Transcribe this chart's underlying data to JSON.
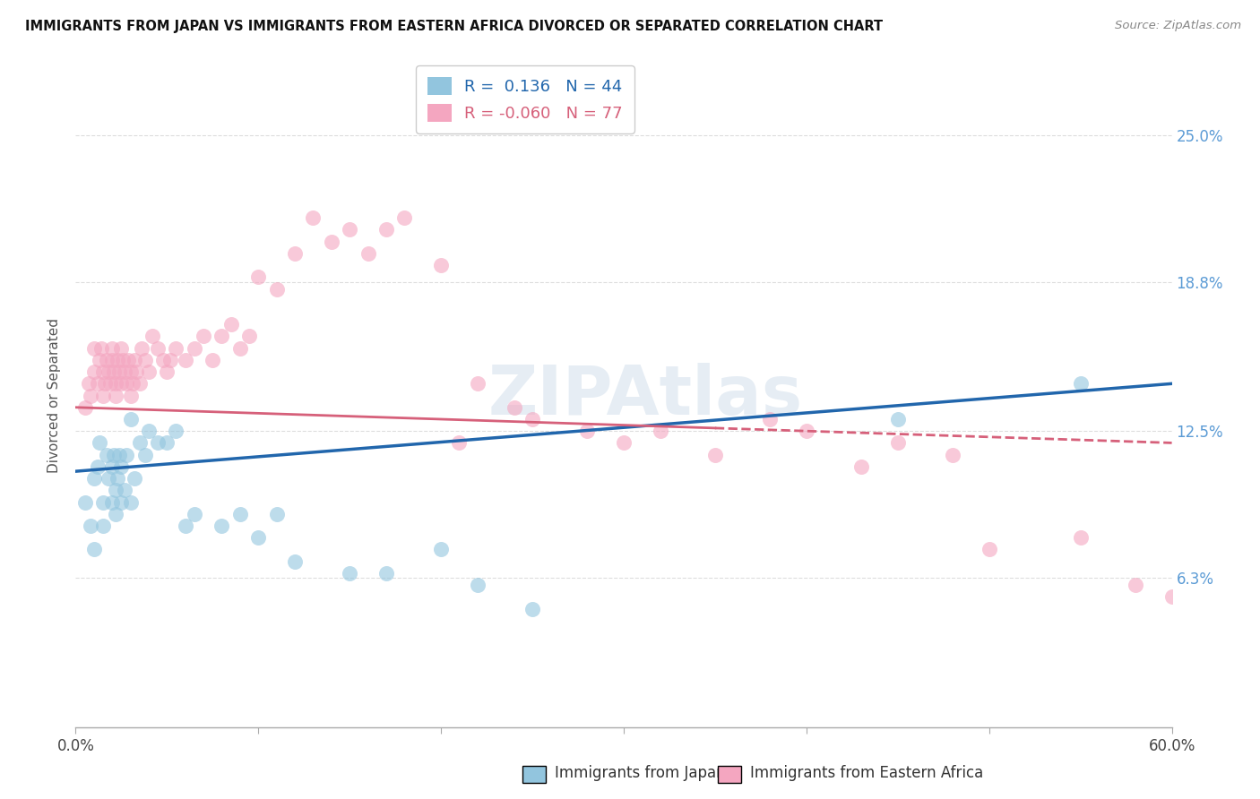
{
  "title": "IMMIGRANTS FROM JAPAN VS IMMIGRANTS FROM EASTERN AFRICA DIVORCED OR SEPARATED CORRELATION CHART",
  "source": "Source: ZipAtlas.com",
  "ylabel": "Divorced or Separated",
  "xlim": [
    0.0,
    0.6
  ],
  "ylim": [
    0.0,
    0.28
  ],
  "ytick_labels": [
    "6.3%",
    "12.5%",
    "18.8%",
    "25.0%"
  ],
  "ytick_values": [
    0.063,
    0.125,
    0.188,
    0.25
  ],
  "R_japan": 0.136,
  "N_japan": 44,
  "R_eastern": -0.06,
  "N_eastern": 77,
  "color_japan": "#92c5de",
  "color_eastern": "#f4a6c0",
  "line_color_japan": "#2166ac",
  "line_color_eastern": "#d6607a",
  "watermark": "ZIPAtlas",
  "grid_color": "#dddddd",
  "japan_x": [
    0.005,
    0.008,
    0.01,
    0.01,
    0.012,
    0.013,
    0.015,
    0.015,
    0.017,
    0.018,
    0.02,
    0.02,
    0.021,
    0.022,
    0.022,
    0.023,
    0.024,
    0.025,
    0.025,
    0.027,
    0.028,
    0.03,
    0.03,
    0.032,
    0.035,
    0.038,
    0.04,
    0.045,
    0.05,
    0.055,
    0.06,
    0.065,
    0.08,
    0.09,
    0.1,
    0.11,
    0.12,
    0.15,
    0.17,
    0.2,
    0.22,
    0.25,
    0.45,
    0.55
  ],
  "japan_y": [
    0.095,
    0.085,
    0.105,
    0.075,
    0.11,
    0.12,
    0.095,
    0.085,
    0.115,
    0.105,
    0.095,
    0.11,
    0.115,
    0.09,
    0.1,
    0.105,
    0.115,
    0.095,
    0.11,
    0.1,
    0.115,
    0.095,
    0.13,
    0.105,
    0.12,
    0.115,
    0.125,
    0.12,
    0.12,
    0.125,
    0.085,
    0.09,
    0.085,
    0.09,
    0.08,
    0.09,
    0.07,
    0.065,
    0.065,
    0.075,
    0.06,
    0.05,
    0.13,
    0.145
  ],
  "eastern_x": [
    0.005,
    0.007,
    0.008,
    0.01,
    0.01,
    0.012,
    0.013,
    0.014,
    0.015,
    0.015,
    0.016,
    0.017,
    0.018,
    0.019,
    0.02,
    0.02,
    0.021,
    0.022,
    0.022,
    0.023,
    0.024,
    0.025,
    0.025,
    0.026,
    0.027,
    0.028,
    0.029,
    0.03,
    0.03,
    0.031,
    0.032,
    0.033,
    0.035,
    0.036,
    0.038,
    0.04,
    0.042,
    0.045,
    0.048,
    0.05,
    0.052,
    0.055,
    0.06,
    0.065,
    0.07,
    0.075,
    0.08,
    0.085,
    0.09,
    0.095,
    0.1,
    0.11,
    0.12,
    0.13,
    0.14,
    0.15,
    0.16,
    0.17,
    0.18,
    0.2,
    0.21,
    0.22,
    0.24,
    0.25,
    0.28,
    0.3,
    0.32,
    0.35,
    0.38,
    0.4,
    0.43,
    0.45,
    0.48,
    0.5,
    0.55,
    0.58,
    0.6
  ],
  "eastern_y": [
    0.135,
    0.145,
    0.14,
    0.15,
    0.16,
    0.145,
    0.155,
    0.16,
    0.14,
    0.15,
    0.145,
    0.155,
    0.15,
    0.145,
    0.155,
    0.16,
    0.15,
    0.145,
    0.14,
    0.155,
    0.15,
    0.145,
    0.16,
    0.155,
    0.15,
    0.145,
    0.155,
    0.14,
    0.15,
    0.145,
    0.155,
    0.15,
    0.145,
    0.16,
    0.155,
    0.15,
    0.165,
    0.16,
    0.155,
    0.15,
    0.155,
    0.16,
    0.155,
    0.16,
    0.165,
    0.155,
    0.165,
    0.17,
    0.16,
    0.165,
    0.19,
    0.185,
    0.2,
    0.215,
    0.205,
    0.21,
    0.2,
    0.21,
    0.215,
    0.195,
    0.12,
    0.145,
    0.135,
    0.13,
    0.125,
    0.12,
    0.125,
    0.115,
    0.13,
    0.125,
    0.11,
    0.12,
    0.115,
    0.075,
    0.08,
    0.06,
    0.055
  ]
}
